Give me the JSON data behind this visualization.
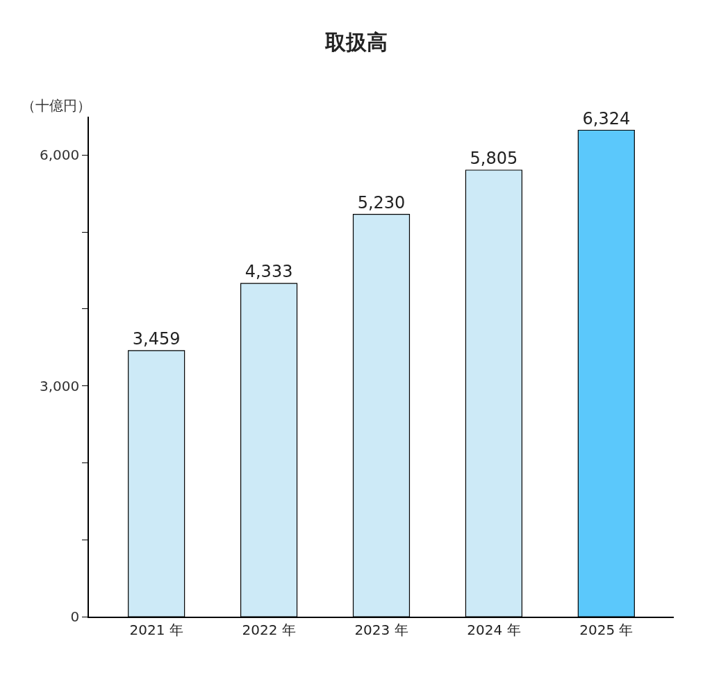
{
  "chart_data": {
    "type": "bar",
    "title": "取扱高",
    "ylabel": "（十億円）",
    "categories": [
      "2021 年",
      "2022 年",
      "2023 年",
      "2024 年",
      "2025 年"
    ],
    "values": [
      3459,
      4333,
      5230,
      5805,
      6324
    ],
    "value_labels": [
      "3,459",
      "4,333",
      "5,230",
      "5,805",
      "6,324"
    ],
    "colors": [
      "#cdeaf7",
      "#cdeaf7",
      "#cdeaf7",
      "#cdeaf7",
      "#5bc8fb"
    ],
    "ylim": [
      0,
      6500
    ],
    "yticks": [
      0,
      {
        "value": 1000,
        "label": null
      },
      {
        "value": 2000,
        "label": null
      },
      {
        "value": 3000,
        "label": "3,000"
      },
      {
        "value": 4000,
        "label": null
      },
      {
        "value": 5000,
        "label": null
      },
      {
        "value": 6000,
        "label": "6,000"
      }
    ],
    "tick_labels": "xy"
  }
}
